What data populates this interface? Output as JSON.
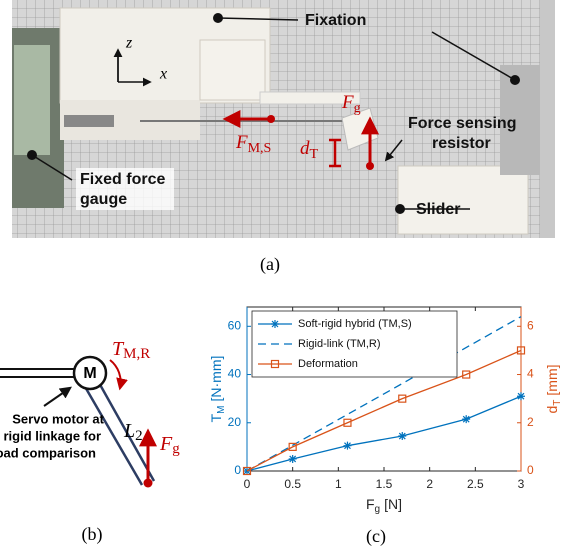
{
  "photo": {
    "panel_label": "(a)",
    "axes": {
      "z": "z",
      "x": "x"
    },
    "labels": {
      "fixation": "Fixation",
      "force_sensing_resistor": [
        "Force sensing",
        "resistor"
      ],
      "fixed_force_gauge": [
        "Fixed force",
        "gauge"
      ],
      "slider": "Slider"
    },
    "force_ms": {
      "symbol": "F",
      "subscript": "M,S"
    },
    "force_g": {
      "symbol": "F",
      "subscript": "g"
    },
    "displacement": {
      "symbol": "d",
      "subscript": "T"
    }
  },
  "diagram": {
    "panel_label": "(b)",
    "motor": "M",
    "torque": {
      "symbol": "T",
      "subscript": "M,R"
    },
    "link": {
      "symbol": "L",
      "subscript": "2"
    },
    "force": {
      "symbol": "F",
      "subscript": "g"
    },
    "note": [
      "Servo motor at",
      "rigid linkage for",
      "load comparison"
    ]
  },
  "chart_data": {
    "type": "line",
    "panel_label": "(c)",
    "x_label": {
      "symbol": "F",
      "subscript": "g",
      "unit": "[N]"
    },
    "y_label": {
      "symbol": "T",
      "subscript": "M",
      "unit": "[N·mm]",
      "color": "#0072bd"
    },
    "y2_label": {
      "symbol": "d",
      "subscript": "T",
      "unit": "[mm]",
      "color": "#d95319"
    },
    "xlim": [
      0,
      3
    ],
    "xticks": [
      0,
      0.5,
      1,
      1.5,
      2,
      2.5,
      3
    ],
    "ylim": [
      0,
      68
    ],
    "yticks": [
      0,
      20,
      40,
      60
    ],
    "y2lim": [
      0,
      6.8
    ],
    "y2ticks": [
      0,
      2,
      4,
      6
    ],
    "legend": "upper left",
    "series": [
      {
        "name": "Soft-rigid hybrid (TM,S)",
        "color": "#0072bd",
        "marker": "asterisk",
        "linestyle": "solid",
        "x": [
          0,
          0.5,
          1.1,
          1.7,
          2.4,
          3
        ],
        "values": [
          0,
          5,
          10.5,
          14.5,
          21.5,
          31
        ]
      },
      {
        "name": "Rigid-link (TM,R)",
        "color": "#0072bd",
        "marker": "none",
        "linestyle": "dashed",
        "x": [
          0,
          3
        ],
        "values": [
          0,
          64
        ]
      },
      {
        "name": "Deformation",
        "color": "#d95319",
        "marker": "square",
        "linestyle": "solid",
        "axis": "y2",
        "x": [
          0,
          0.5,
          1.1,
          1.7,
          2.4,
          3
        ],
        "values": [
          0,
          1,
          2,
          3,
          4,
          5
        ]
      }
    ]
  }
}
